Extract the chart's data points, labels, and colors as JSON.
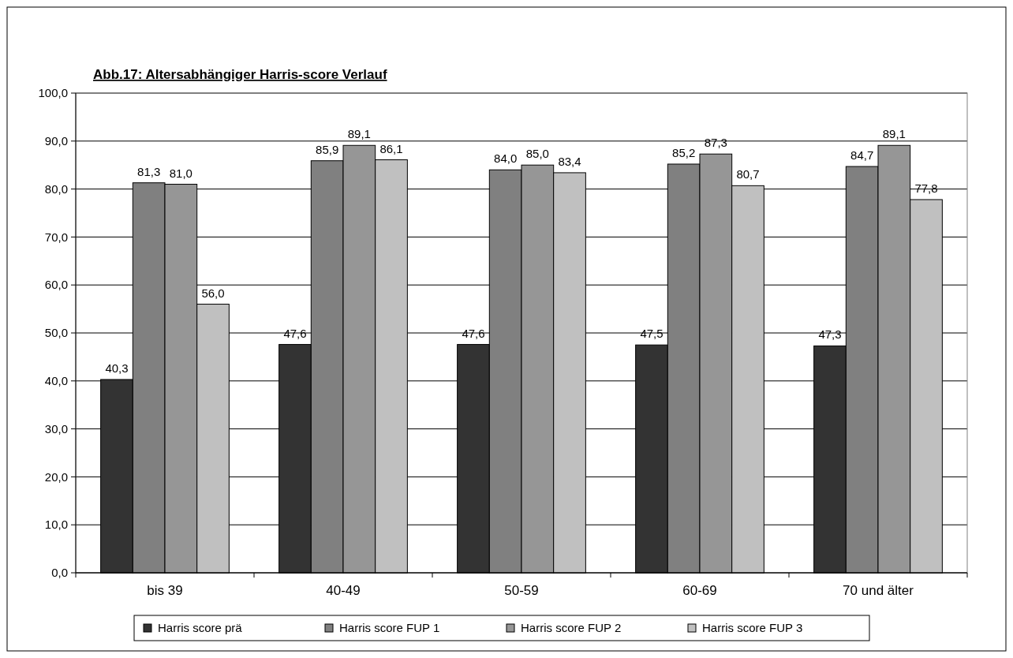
{
  "chart_data": {
    "type": "bar",
    "title": "Abb.17: Altersabhängiger Harris-score Verlauf",
    "categories": [
      "bis 39",
      "40-49",
      "50-59",
      "60-69",
      "70 und älter"
    ],
    "series": [
      {
        "name": "Harris score prä",
        "color": "#333333",
        "values": [
          40.3,
          47.6,
          47.6,
          47.5,
          47.3
        ],
        "value_labels": [
          "40,3",
          "47,6",
          "47,6",
          "47,5",
          "47,3"
        ]
      },
      {
        "name": "Harris score FUP 1",
        "color": "#808080",
        "values": [
          81.3,
          85.9,
          84.0,
          85.2,
          84.7
        ],
        "value_labels": [
          "81,3",
          "85,9",
          "84,0",
          "85,2",
          "84,7"
        ]
      },
      {
        "name": "Harris score FUP 2",
        "color": "#969696",
        "values": [
          81.0,
          89.1,
          85.0,
          87.3,
          89.1
        ],
        "value_labels": [
          "81,0",
          "89,1",
          "85,0",
          "87,3",
          "89,1"
        ]
      },
      {
        "name": "Harris score FUP 3",
        "color": "#c0c0c0",
        "values": [
          56.0,
          86.1,
          83.4,
          80.7,
          77.8
        ],
        "value_labels": [
          "56,0",
          "86,1",
          "83,4",
          "80,7",
          "77,8"
        ]
      }
    ],
    "ylim": [
      0,
      100
    ],
    "yticks": [
      {
        "value": 0,
        "label": "0,0"
      },
      {
        "value": 10,
        "label": "10,0"
      },
      {
        "value": 20,
        "label": "20,0"
      },
      {
        "value": 30,
        "label": "30,0"
      },
      {
        "value": 40,
        "label": "40,0"
      },
      {
        "value": 50,
        "label": "50,0"
      },
      {
        "value": 60,
        "label": "60,0"
      },
      {
        "value": 70,
        "label": "70,0"
      },
      {
        "value": 80,
        "label": "80,0"
      },
      {
        "value": 90,
        "label": "90,0"
      },
      {
        "value": 100,
        "label": "100,0"
      }
    ],
    "grid": "y",
    "legend": "bottom"
  }
}
